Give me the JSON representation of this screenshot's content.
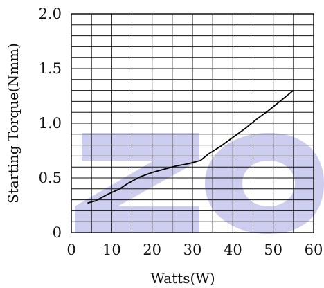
{
  "chart_data": {
    "type": "line",
    "title": "",
    "xlabel": "Watts(W)",
    "ylabel": "Starting Torque(Nmm)",
    "xlim": [
      0,
      60
    ],
    "ylim": [
      0,
      2.0
    ],
    "x_ticks": [
      "0",
      "10",
      "20",
      "30",
      "40",
      "50",
      "60"
    ],
    "y_ticks": [
      "0",
      "0.5",
      "1.0",
      "1.5",
      "2.0"
    ],
    "x_minor_step": 5,
    "y_minor_step": 0.1,
    "grid": true,
    "legend": "none",
    "series": [
      {
        "x": [
          4,
          6,
          9,
          12,
          14,
          17,
          20,
          23,
          26,
          29,
          32,
          34,
          37,
          40,
          43,
          46,
          49,
          52,
          55
        ],
        "y": [
          0.27,
          0.29,
          0.35,
          0.4,
          0.45,
          0.51,
          0.55,
          0.58,
          0.61,
          0.63,
          0.66,
          0.72,
          0.79,
          0.87,
          0.95,
          1.04,
          1.12,
          1.21,
          1.3
        ],
        "color": "#000000"
      }
    ],
    "watermark": "ZO",
    "watermark_color": "#c8c8ee"
  }
}
